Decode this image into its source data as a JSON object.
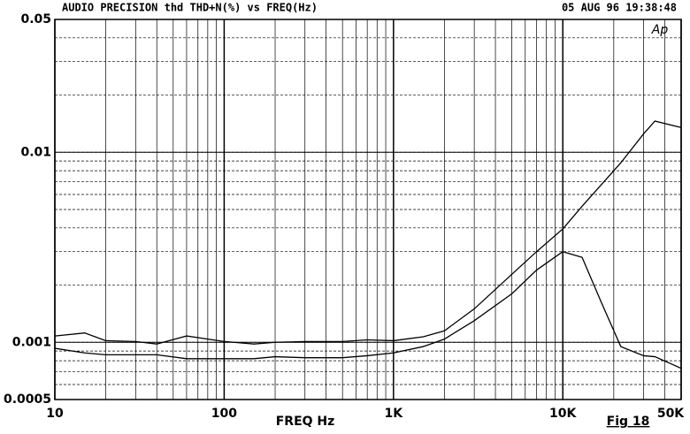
{
  "chart_data": {
    "type": "line",
    "title": "AUDIO PRECISION thd THD+N(%) vs FREQ(Hz)",
    "subtitle": "05 AUG 96 19:38:48",
    "logo": "Ap",
    "x_label": "FREQ Hz",
    "figure_label": "Fig 18",
    "x": [
      10,
      15,
      20,
      30,
      40,
      60,
      100,
      150,
      200,
      300,
      500,
      700,
      1000,
      1500,
      2000,
      3000,
      5000,
      7000,
      10000,
      13000,
      17000,
      22000,
      30000,
      35000,
      50000
    ],
    "series": [
      {
        "color": "#000000",
        "values": [
          0.00108,
          0.00112,
          0.00102,
          0.00101,
          0.00098,
          0.00108,
          0.00101,
          0.00098,
          0.001,
          0.00101,
          0.00101,
          0.00103,
          0.00102,
          0.00107,
          0.00115,
          0.0015,
          0.00228,
          0.003,
          0.00395,
          0.0052,
          0.0068,
          0.0088,
          0.0125,
          0.0146,
          0.0135
        ]
      },
      {
        "color": "#000000",
        "values": [
          0.00093,
          0.00088,
          0.00086,
          0.00086,
          0.00086,
          0.00082,
          0.00082,
          0.00082,
          0.00084,
          0.00083,
          0.00083,
          0.00085,
          0.00088,
          0.00095,
          0.00104,
          0.0013,
          0.0018,
          0.0024,
          0.003,
          0.0028,
          0.0016,
          0.00095,
          0.00085,
          0.00084,
          0.00073
        ]
      }
    ],
    "xlim": [
      10,
      50000
    ],
    "ylim": [
      0.0005,
      0.05
    ],
    "xticks": [
      10,
      100,
      {
        "value": 1000,
        "label": "1K"
      },
      {
        "value": 10000,
        "label": "10K"
      },
      {
        "value": 50000,
        "label": "50K"
      }
    ],
    "yticks": [
      0.05,
      0.01,
      0.001,
      0.0005
    ],
    "xscale": "log",
    "yscale": "log",
    "grid": true
  }
}
